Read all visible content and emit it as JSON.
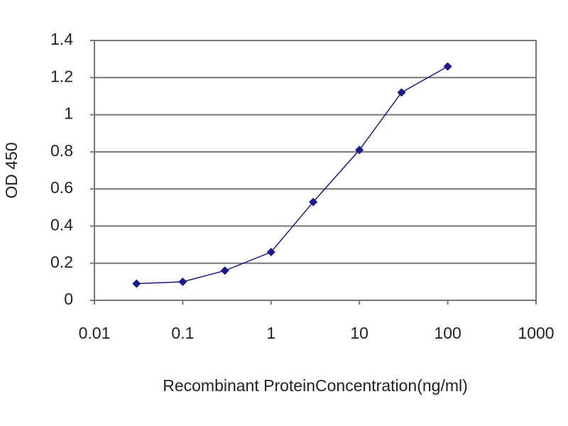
{
  "chart_data": {
    "type": "line",
    "x_label": "Recombinant ProteinConcentration(ng/ml)",
    "y_label": "OD 450",
    "xscale": "log",
    "xlim": [
      0.01,
      1000
    ],
    "xticks": [
      0.01,
      0.1,
      1,
      10,
      100,
      1000
    ],
    "ylim": [
      0,
      1.4
    ],
    "yticks": [
      0,
      0.2,
      0.4,
      0.6,
      0.8,
      1,
      1.2,
      1.4
    ],
    "grid": true,
    "series": [
      {
        "color": "#1a1a8c",
        "x": [
          0.03,
          0.1,
          0.3,
          1,
          3,
          10,
          30,
          100
        ],
        "values": [
          0.09,
          0.1,
          0.16,
          0.26,
          0.53,
          0.81,
          1.12,
          1.26
        ]
      }
    ]
  }
}
